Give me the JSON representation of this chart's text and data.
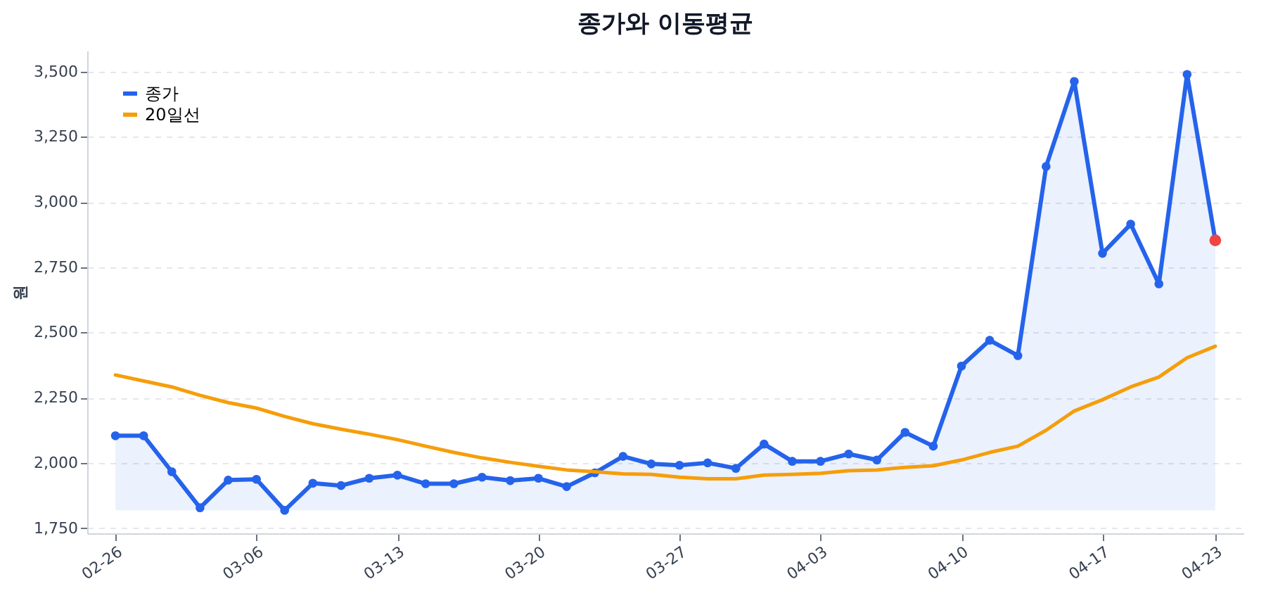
{
  "chart_data": {
    "type": "line",
    "title": "종가와 이동평균",
    "ylabel": "원",
    "categories": [
      "02-26",
      null,
      null,
      null,
      null,
      "03-06",
      null,
      null,
      null,
      null,
      "03-13",
      null,
      null,
      null,
      null,
      "03-20",
      null,
      null,
      null,
      null,
      "03-27",
      null,
      null,
      null,
      null,
      "04-03",
      null,
      null,
      null,
      null,
      "04-10",
      null,
      null,
      null,
      null,
      "04-17",
      null,
      null,
      null,
      "04-23"
    ],
    "series": [
      {
        "name": "종가",
        "type": "area",
        "color": "#2563eb",
        "marker": "circle",
        "values": [
          2104,
          2104,
          1966,
          1828,
          1934,
          1937,
          1818,
          1922,
          1913,
          1941,
          1953,
          1920,
          1920,
          1945,
          1932,
          1941,
          1909,
          1962,
          2025,
          1996,
          1991,
          2000,
          1979,
          2072,
          2006,
          2006,
          2034,
          2011,
          2117,
          2064,
          2371,
          2470,
          2411,
          3136,
          3462,
          2803,
          2915,
          2686,
          3489,
          2853
        ]
      },
      {
        "name": "20일선",
        "color": "#f59e0b",
        "values": [
          2337,
          2314,
          2291,
          2259,
          2231,
          2210,
          2178,
          2150,
          2129,
          2110,
          2089,
          2064,
          2040,
          2019,
          2002,
          1987,
          1973,
          1966,
          1958,
          1956,
          1945,
          1939,
          1939,
          1953,
          1956,
          1960,
          1970,
          1973,
          1983,
          1989,
          2011,
          2040,
          2064,
          2125,
          2199,
          2242,
          2291,
          2329,
          2403,
          2447
        ]
      },
      {
        "type": "scatter",
        "color": "#ef4444",
        "x": [
          "04-23"
        ],
        "values": [
          2853
        ]
      }
    ],
    "ylim": [
      1730,
      3580
    ],
    "yticks": [
      {
        "value": 1750,
        "label": "1,750"
      },
      {
        "value": 2000,
        "label": "2,000"
      },
      {
        "value": 2250,
        "label": "2,250"
      },
      {
        "value": 2500,
        "label": "2,500"
      },
      {
        "value": 2750,
        "label": "2,750"
      },
      {
        "value": 3000,
        "label": "3,000"
      },
      {
        "value": 3250,
        "label": "3,250"
      },
      {
        "value": 3500,
        "label": "3,500"
      }
    ],
    "grid": "y",
    "legend": "top left"
  }
}
